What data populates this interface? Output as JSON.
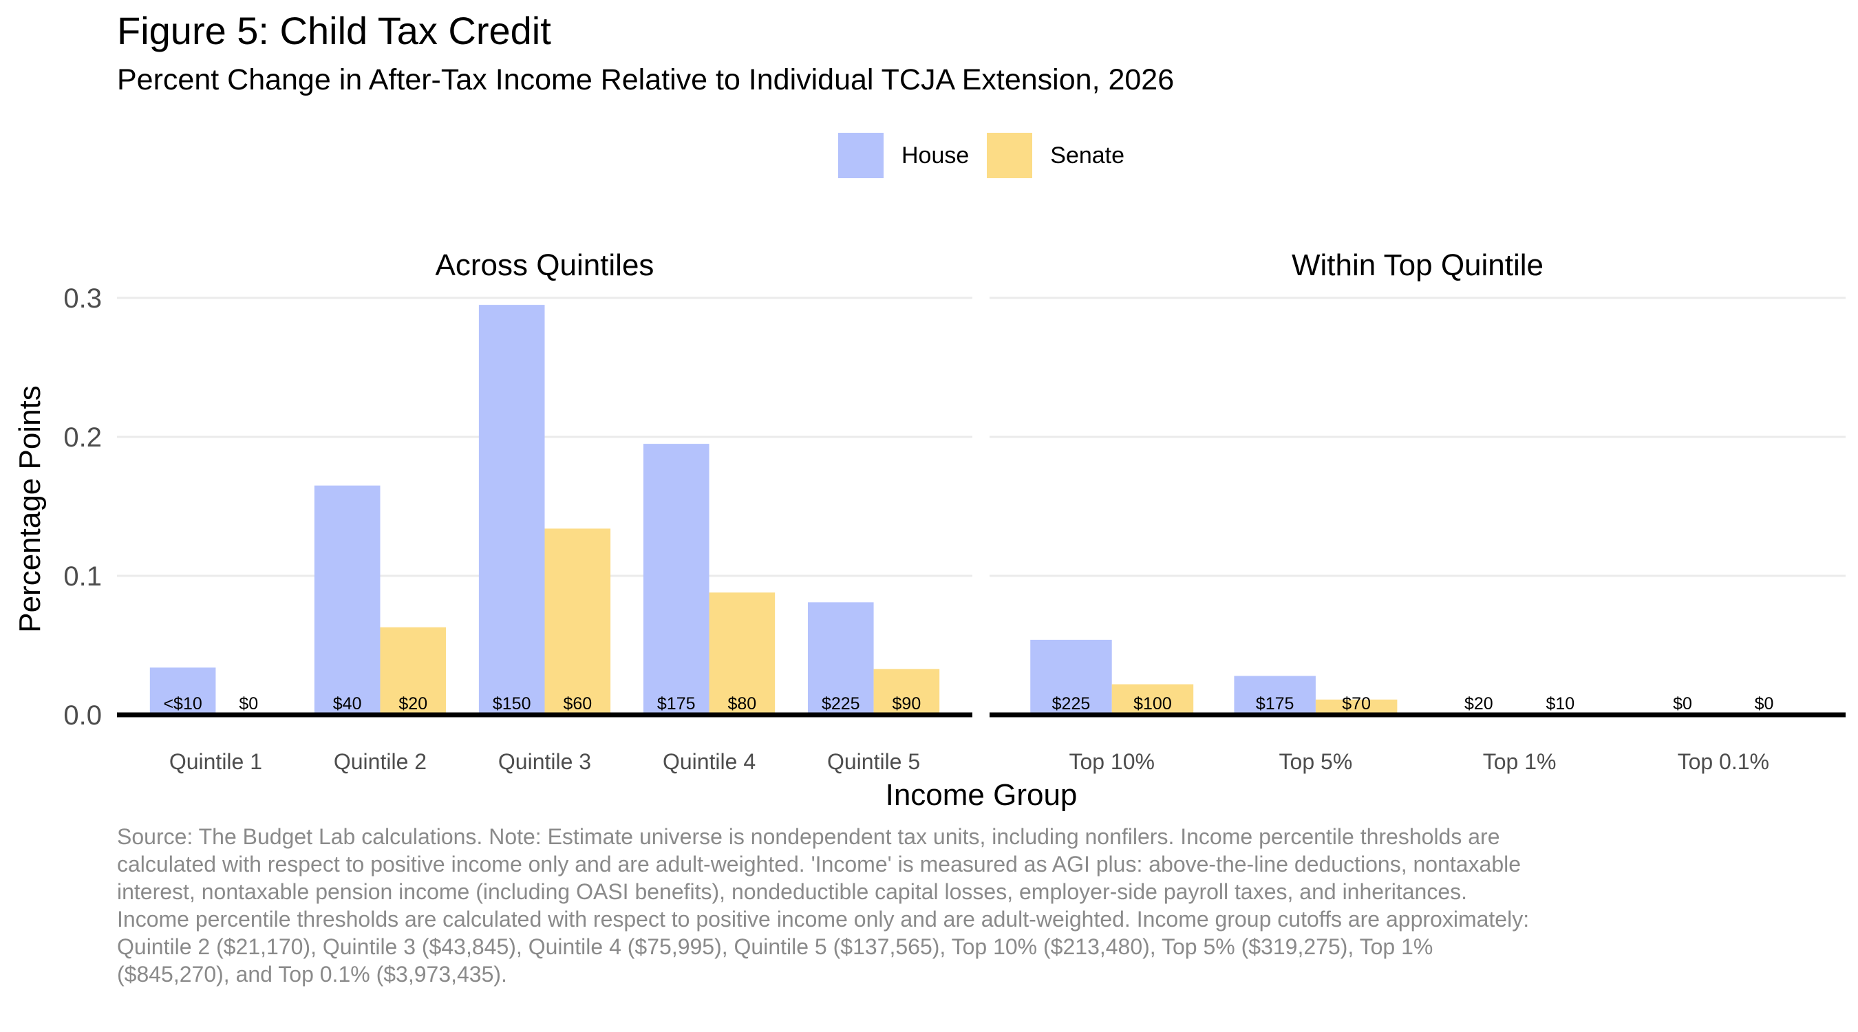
{
  "title": "Figure 5: Child Tax Credit",
  "subtitle": "Percent Change in After-Tax Income Relative to Individual TCJA Extension, 2026",
  "legend": [
    {
      "label": "House",
      "color": "#b4c2fc"
    },
    {
      "label": "Senate",
      "color": "#fcdc86"
    }
  ],
  "caption": "Source: The Budget Lab calculations. Note: Estimate universe is nondependent tax units, including nonfilers. Income percentile thresholds are calculated with respect to positive income only and are adult-weighted. 'Income' is measured as AGI plus: above-the-line deductions, nontaxable interest, nontaxable pension income (including OASI benefits), nondeductible capital losses, employer-side payroll taxes, and inheritances. Income percentile thresholds are calculated with respect to positive income only and are adult-weighted. Income group cutoffs are approximately: Quintile 2 ($21,170), Quintile 3 ($43,845), Quintile 4 ($75,995), Quintile 5 ($137,565), Top 10% ($213,480), Top 5% ($319,275), Top 1% ($845,270), and Top 0.1% ($3,973,435).",
  "chart_data": {
    "type": "bar",
    "xlabel": "Income Group",
    "ylabel": "Percentage Points",
    "ylim": [
      0,
      0.3
    ],
    "yticks": [
      "0.0",
      "0.1",
      "0.2",
      "0.3"
    ],
    "grid": true,
    "legend_position": "top",
    "facets": [
      {
        "title": "Across Quintiles",
        "categories": [
          "Quintile 1",
          "Quintile 2",
          "Quintile 3",
          "Quintile 4",
          "Quintile 5"
        ],
        "series": [
          {
            "name": "House",
            "values": [
              0.034,
              0.165,
              0.295,
              0.195,
              0.081
            ],
            "labels": [
              "<$10",
              "$40",
              "$150",
              "$175",
              "$225"
            ]
          },
          {
            "name": "Senate",
            "values": [
              0.0,
              0.063,
              0.134,
              0.088,
              0.033
            ],
            "labels": [
              "$0",
              "$20",
              "$60",
              "$80",
              "$90"
            ]
          }
        ]
      },
      {
        "title": "Within Top Quintile",
        "categories": [
          "Top 10%",
          "Top 5%",
          "Top 1%",
          "Top 0.1%"
        ],
        "series": [
          {
            "name": "House",
            "values": [
              0.054,
              0.028,
              0.001,
              0.0
            ],
            "labels": [
              "$225",
              "$175",
              "$20",
              "$0"
            ]
          },
          {
            "name": "Senate",
            "values": [
              0.022,
              0.011,
              0.0005,
              0.0
            ],
            "labels": [
              "$100",
              "$70",
              "$10",
              "$0"
            ]
          }
        ]
      }
    ]
  }
}
